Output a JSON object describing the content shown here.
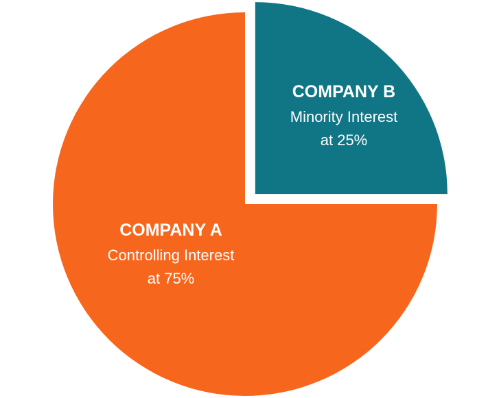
{
  "chart_data": {
    "type": "pie",
    "title": "",
    "slices": [
      {
        "name": "COMPANY A",
        "description": "Controlling Interest",
        "value_label": "at 75%",
        "value": 75,
        "color": "#f7661d",
        "exploded": false
      },
      {
        "name": "COMPANY B",
        "description": "Minority Interest",
        "value_label": "at 25%",
        "value": 25,
        "color": "#107585",
        "exploded": true
      }
    ],
    "legend": "none"
  }
}
